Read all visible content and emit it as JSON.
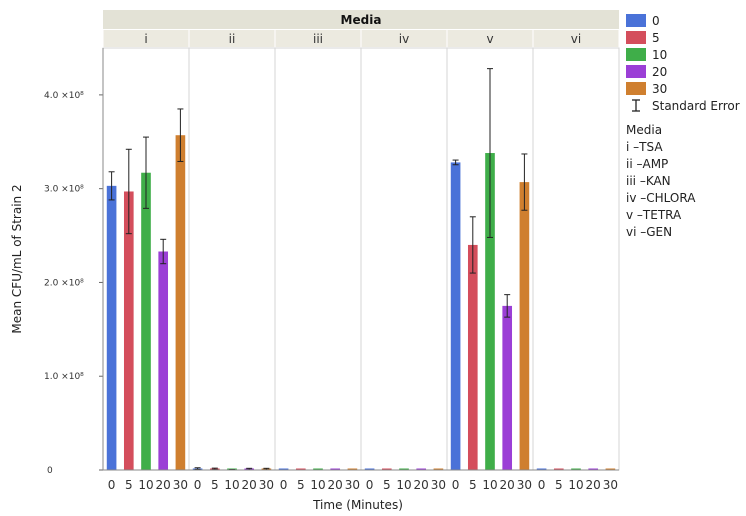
{
  "chart_data": {
    "type": "bar",
    "facet_title": "Media",
    "facets": [
      "i",
      "ii",
      "iii",
      "iv",
      "v",
      "vi"
    ],
    "categories": [
      "0",
      "5",
      "10",
      "20",
      "30"
    ],
    "xlabel": "Time (Minutes)",
    "ylabel": "Mean CFU/mL of Strain 2",
    "ylim": [
      0,
      450000000
    ],
    "yticks": [
      {
        "value": 0,
        "label": "0"
      },
      {
        "value": 100000000,
        "label": "1.0 ×10⁸"
      },
      {
        "value": 200000000,
        "label": "2.0 ×10⁸"
      },
      {
        "value": 300000000,
        "label": "3.0 ×10⁸"
      },
      {
        "value": 400000000,
        "label": "4.0 ×10⁸"
      }
    ],
    "series_colors": [
      "#4a72d8",
      "#d44e5c",
      "#3fae49",
      "#9b3fd6",
      "#cf7f2f"
    ],
    "values": [
      [
        303000000,
        297000000,
        317000000,
        233000000,
        357000000
      ],
      [
        1500000,
        1200000,
        300000,
        1000000,
        1000000
      ],
      [
        200000,
        200000,
        200000,
        200000,
        200000
      ],
      [
        200000,
        200000,
        200000,
        200000,
        200000
      ],
      [
        328000000,
        240000000,
        338000000,
        175000000,
        307000000
      ],
      [
        200000,
        200000,
        200000,
        200000,
        200000
      ]
    ],
    "errors": [
      [
        15000000,
        45000000,
        38000000,
        13000000,
        28000000
      ],
      [
        900000,
        800000,
        200000,
        800000,
        800000
      ],
      [
        0,
        0,
        0,
        0,
        0
      ],
      [
        0,
        0,
        0,
        0,
        0
      ],
      [
        2500000,
        30000000,
        90000000,
        12000000,
        30000000
      ],
      [
        0,
        0,
        0,
        0,
        0
      ]
    ],
    "legend": {
      "entries": [
        "0",
        "5",
        "10",
        "20",
        "30"
      ],
      "error_label": "Standard Error",
      "media_key_title": "Media",
      "media_key": [
        "i –TSA",
        "ii –AMP",
        "iii –KAN",
        "iv –CHLORA",
        "v –TETRA",
        "vi –GEN"
      ],
      "placement": "right"
    }
  }
}
